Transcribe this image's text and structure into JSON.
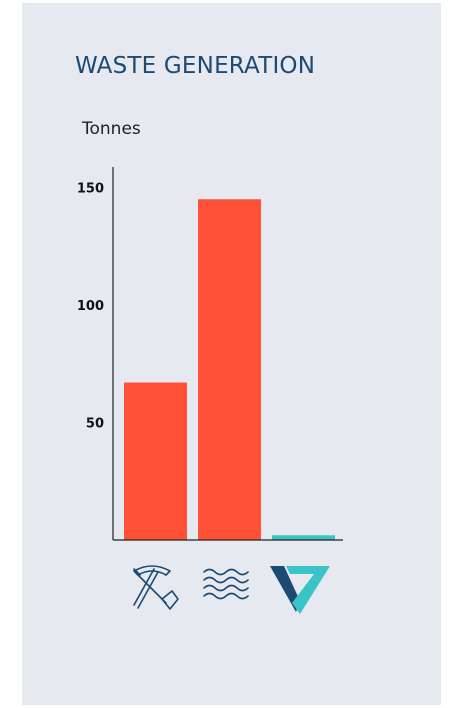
{
  "title": "WASTE GENERATION",
  "chart_data": {
    "type": "bar",
    "ylabel": "Tonnes",
    "xlabel": "",
    "categories_icons": [
      "pickaxe-shovel-icon",
      "water-waves-icon",
      "v7-logo-icon"
    ],
    "values": [
      67,
      145,
      2
    ],
    "ylim": [
      0,
      160
    ],
    "yticks": [
      50,
      100,
      150
    ],
    "grid": false,
    "colors": {
      "bars": [
        "#ff5138",
        "#ff5138",
        "#3bc4c6"
      ],
      "axis": "#222222",
      "icon_primary": "#1d4a73",
      "icon_accent": "#3bc4c6"
    }
  }
}
